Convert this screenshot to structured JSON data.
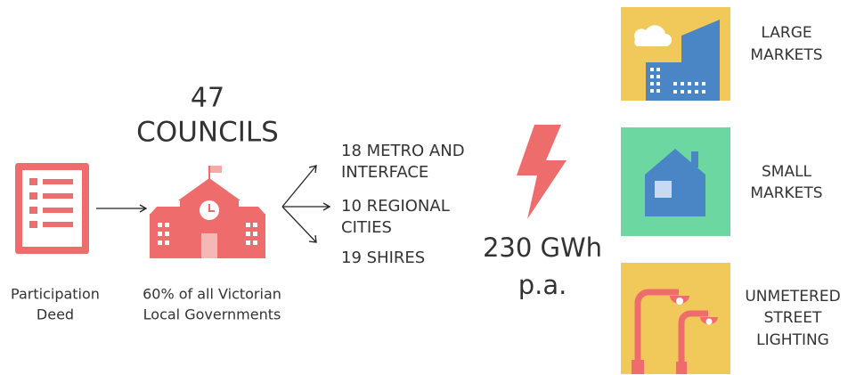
{
  "headline": {
    "number": "47",
    "label": "COUNCILS"
  },
  "deed_label": [
    "Participation",
    "Deed"
  ],
  "councils_label": [
    "60% of all Victorian",
    "Local Governments"
  ],
  "branches": [
    [
      "18 METRO AND",
      "INTERFACE"
    ],
    [
      "10 REGIONAL",
      "CITIES"
    ],
    [
      "19 SHIRES"
    ]
  ],
  "energy": [
    "230 GWh",
    "p.a."
  ],
  "markets": [
    [
      "LARGE",
      "MARKETS"
    ],
    [
      "SMALL",
      "MARKETS"
    ],
    [
      "UNMETERED",
      "STREET",
      "LIGHTING"
    ]
  ]
}
